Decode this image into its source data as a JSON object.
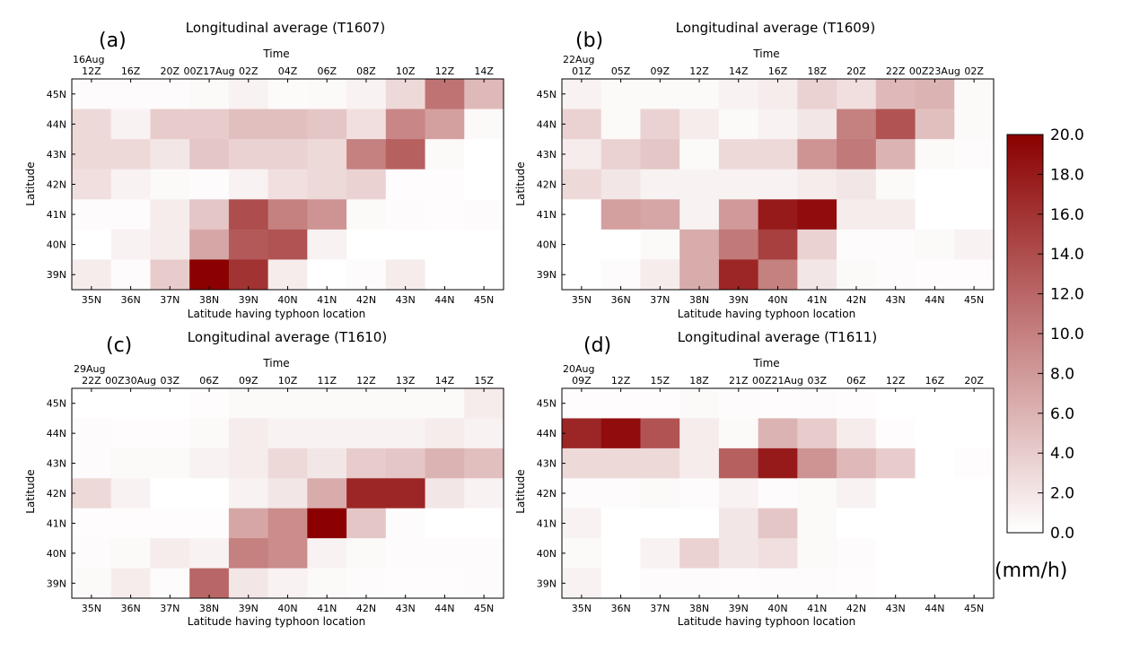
{
  "colorbar": {
    "min": 0,
    "max": 20,
    "ticks": [
      "20.0",
      "18.0",
      "16.0",
      "14.0",
      "12.0",
      "10.0",
      "8.0",
      "6.0",
      "4.0",
      "2.0",
      "0.0"
    ],
    "unit": "(mm/h)",
    "color_low": "#ffffff",
    "color_high": "#8b0000"
  },
  "chart_data": [
    {
      "type": "heatmap",
      "panel_label": "(a)",
      "title": "Longitudinal average (T1607)",
      "top_axis_label": "Time",
      "top_date": "16Aug",
      "top_ticks": [
        "12Z",
        "16Z",
        "20Z",
        "00Z17Aug",
        "02Z",
        "04Z",
        "06Z",
        "08Z",
        "10Z",
        "12Z",
        "14Z"
      ],
      "xlabel": "Latitude having typhoon location",
      "ylabel": "Latitude",
      "x_ticks": [
        "35N",
        "36N",
        "37N",
        "38N",
        "39N",
        "40N",
        "41N",
        "42N",
        "43N",
        "44N",
        "45N"
      ],
      "y_ticks": [
        "45N",
        "44N",
        "43N",
        "42N",
        "41N",
        "40N",
        "39N"
      ],
      "values": [
        [
          0.3,
          0.3,
          0.3,
          0.5,
          1.0,
          0.4,
          0.5,
          1.0,
          3.0,
          11.0,
          5.5
        ],
        [
          3.0,
          1.0,
          4.0,
          4.0,
          5.0,
          5.0,
          4.5,
          2.5,
          9.5,
          7.5,
          0.5
        ],
        [
          3.0,
          3.0,
          2.0,
          4.5,
          3.5,
          3.5,
          3.0,
          10.0,
          12.5,
          0.5,
          0.0
        ],
        [
          2.5,
          1.0,
          0.5,
          0.3,
          1.0,
          2.5,
          3.0,
          3.5,
          0.2,
          0.2,
          0.0
        ],
        [
          0.3,
          0.3,
          1.5,
          4.5,
          14.0,
          10.0,
          8.5,
          0.5,
          0.3,
          0.2,
          0.3
        ],
        [
          0.0,
          1.0,
          1.5,
          7.0,
          13.0,
          13.5,
          1.0,
          0.0,
          0.0,
          0.0,
          0.0
        ],
        [
          1.5,
          0.3,
          4.0,
          20.0,
          16.0,
          1.5,
          0.0,
          0.3,
          1.5,
          0.0,
          0.0
        ]
      ]
    },
    {
      "type": "heatmap",
      "panel_label": "(b)",
      "title": "Longitudinal average (T1609)",
      "top_axis_label": "Time",
      "top_date": "22Aug",
      "top_ticks": [
        "01Z",
        "05Z",
        "09Z",
        "12Z",
        "14Z",
        "16Z",
        "18Z",
        "20Z",
        "22Z",
        "00Z23Aug",
        "02Z"
      ],
      "xlabel": "Latitude having typhoon location",
      "ylabel": "Latitude",
      "x_ticks": [
        "35N",
        "36N",
        "37N",
        "38N",
        "39N",
        "40N",
        "41N",
        "42N",
        "43N",
        "44N",
        "45N"
      ],
      "y_ticks": [
        "45N",
        "44N",
        "43N",
        "42N",
        "41N",
        "40N",
        "39N"
      ],
      "values": [
        [
          1.0,
          0.5,
          0.5,
          0.5,
          1.0,
          1.5,
          3.5,
          2.5,
          5.5,
          6.0,
          0.5
        ],
        [
          3.5,
          0.5,
          3.5,
          1.5,
          0.5,
          1.0,
          2.0,
          10.0,
          13.5,
          5.0,
          0.5
        ],
        [
          1.5,
          3.5,
          4.5,
          0.5,
          3.0,
          3.0,
          8.5,
          10.5,
          6.0,
          0.5,
          0.3
        ],
        [
          3.0,
          2.0,
          1.0,
          1.0,
          1.0,
          1.0,
          1.5,
          2.0,
          0.5,
          0.0,
          0.0
        ],
        [
          0.0,
          7.5,
          7.0,
          1.0,
          8.0,
          18.0,
          19.0,
          1.5,
          1.5,
          0.0,
          0.0
        ],
        [
          0.0,
          0.0,
          0.5,
          6.5,
          10.5,
          15.0,
          3.5,
          0.3,
          0.3,
          0.5,
          1.0
        ],
        [
          0.0,
          0.3,
          1.5,
          6.5,
          17.0,
          10.0,
          2.0,
          0.5,
          0.3,
          0.2,
          0.2
        ]
      ]
    },
    {
      "type": "heatmap",
      "panel_label": "(c)",
      "title": "Longitudinal average (T1610)",
      "top_axis_label": "Time",
      "top_date": "29Aug",
      "top_ticks": [
        "22Z",
        "00Z30Aug",
        "03Z",
        "06Z",
        "09Z",
        "10Z",
        "11Z",
        "12Z",
        "13Z",
        "14Z",
        "15Z"
      ],
      "xlabel": "Latitude having typhoon location",
      "ylabel": "Latitude",
      "x_ticks": [
        "35N",
        "36N",
        "37N",
        "38N",
        "39N",
        "40N",
        "41N",
        "42N",
        "43N",
        "44N",
        "45N"
      ],
      "y_ticks": [
        "45N",
        "44N",
        "43N",
        "42N",
        "41N",
        "40N",
        "39N"
      ],
      "values": [
        [
          0.0,
          0.0,
          0.0,
          0.2,
          0.5,
          0.5,
          0.5,
          0.5,
          0.5,
          0.5,
          1.5
        ],
        [
          0.3,
          0.2,
          0.2,
          0.5,
          1.5,
          1.0,
          1.0,
          1.0,
          1.0,
          1.5,
          1.0
        ],
        [
          0.3,
          0.5,
          0.5,
          1.0,
          1.5,
          3.0,
          2.0,
          4.0,
          4.5,
          6.0,
          5.0
        ],
        [
          3.0,
          1.0,
          0.0,
          0.0,
          1.0,
          2.0,
          6.5,
          17.0,
          17.0,
          2.0,
          1.0
        ],
        [
          0.2,
          0.2,
          0.2,
          0.2,
          7.0,
          9.0,
          20.0,
          4.5,
          0.3,
          0.0,
          0.0
        ],
        [
          0.3,
          0.5,
          1.5,
          1.0,
          10.0,
          9.0,
          1.0,
          0.5,
          0.3,
          0.3,
          0.3
        ],
        [
          0.5,
          1.5,
          0.3,
          12.0,
          2.0,
          1.0,
          0.5,
          0.3,
          0.2,
          0.2,
          0.3
        ]
      ]
    },
    {
      "type": "heatmap",
      "panel_label": "(d)",
      "title": "Longitudinal average (T1611)",
      "top_axis_label": "Time",
      "top_date": "20Aug",
      "top_ticks": [
        "09Z",
        "12Z",
        "15Z",
        "18Z",
        "21Z",
        "00Z21Aug",
        "03Z",
        "06Z",
        "12Z",
        "16Z",
        "20Z"
      ],
      "xlabel": "Latitude having typhoon location",
      "ylabel": "Latitude",
      "x_ticks": [
        "35N",
        "36N",
        "37N",
        "38N",
        "39N",
        "40N",
        "41N",
        "42N",
        "43N",
        "44N",
        "45N"
      ],
      "y_ticks": [
        "45N",
        "44N",
        "43N",
        "42N",
        "41N",
        "40N",
        "39N"
      ],
      "values": [
        [
          0.2,
          0.2,
          0.2,
          0.5,
          0.3,
          0.2,
          0.3,
          0.2,
          0.0,
          0.0,
          0.0
        ],
        [
          17.0,
          19.0,
          13.5,
          1.5,
          0.5,
          6.0,
          4.0,
          1.5,
          0.2,
          0.0,
          0.0
        ],
        [
          3.0,
          3.0,
          3.0,
          1.5,
          12.5,
          18.0,
          8.5,
          5.5,
          4.0,
          0.0,
          0.2
        ],
        [
          0.3,
          0.3,
          0.5,
          0.3,
          1.0,
          0.3,
          0.5,
          1.0,
          0.0,
          0.0,
          0.0
        ],
        [
          1.0,
          0.0,
          0.0,
          0.0,
          2.0,
          4.5,
          0.5,
          0.0,
          0.0,
          0.0,
          0.0
        ],
        [
          0.5,
          0.0,
          1.0,
          3.5,
          2.0,
          2.5,
          0.5,
          0.3,
          0.0,
          0.0,
          0.0
        ],
        [
          1.0,
          0.0,
          0.3,
          0.3,
          0.2,
          0.3,
          0.3,
          0.2,
          0.0,
          0.0,
          0.0
        ]
      ]
    }
  ]
}
